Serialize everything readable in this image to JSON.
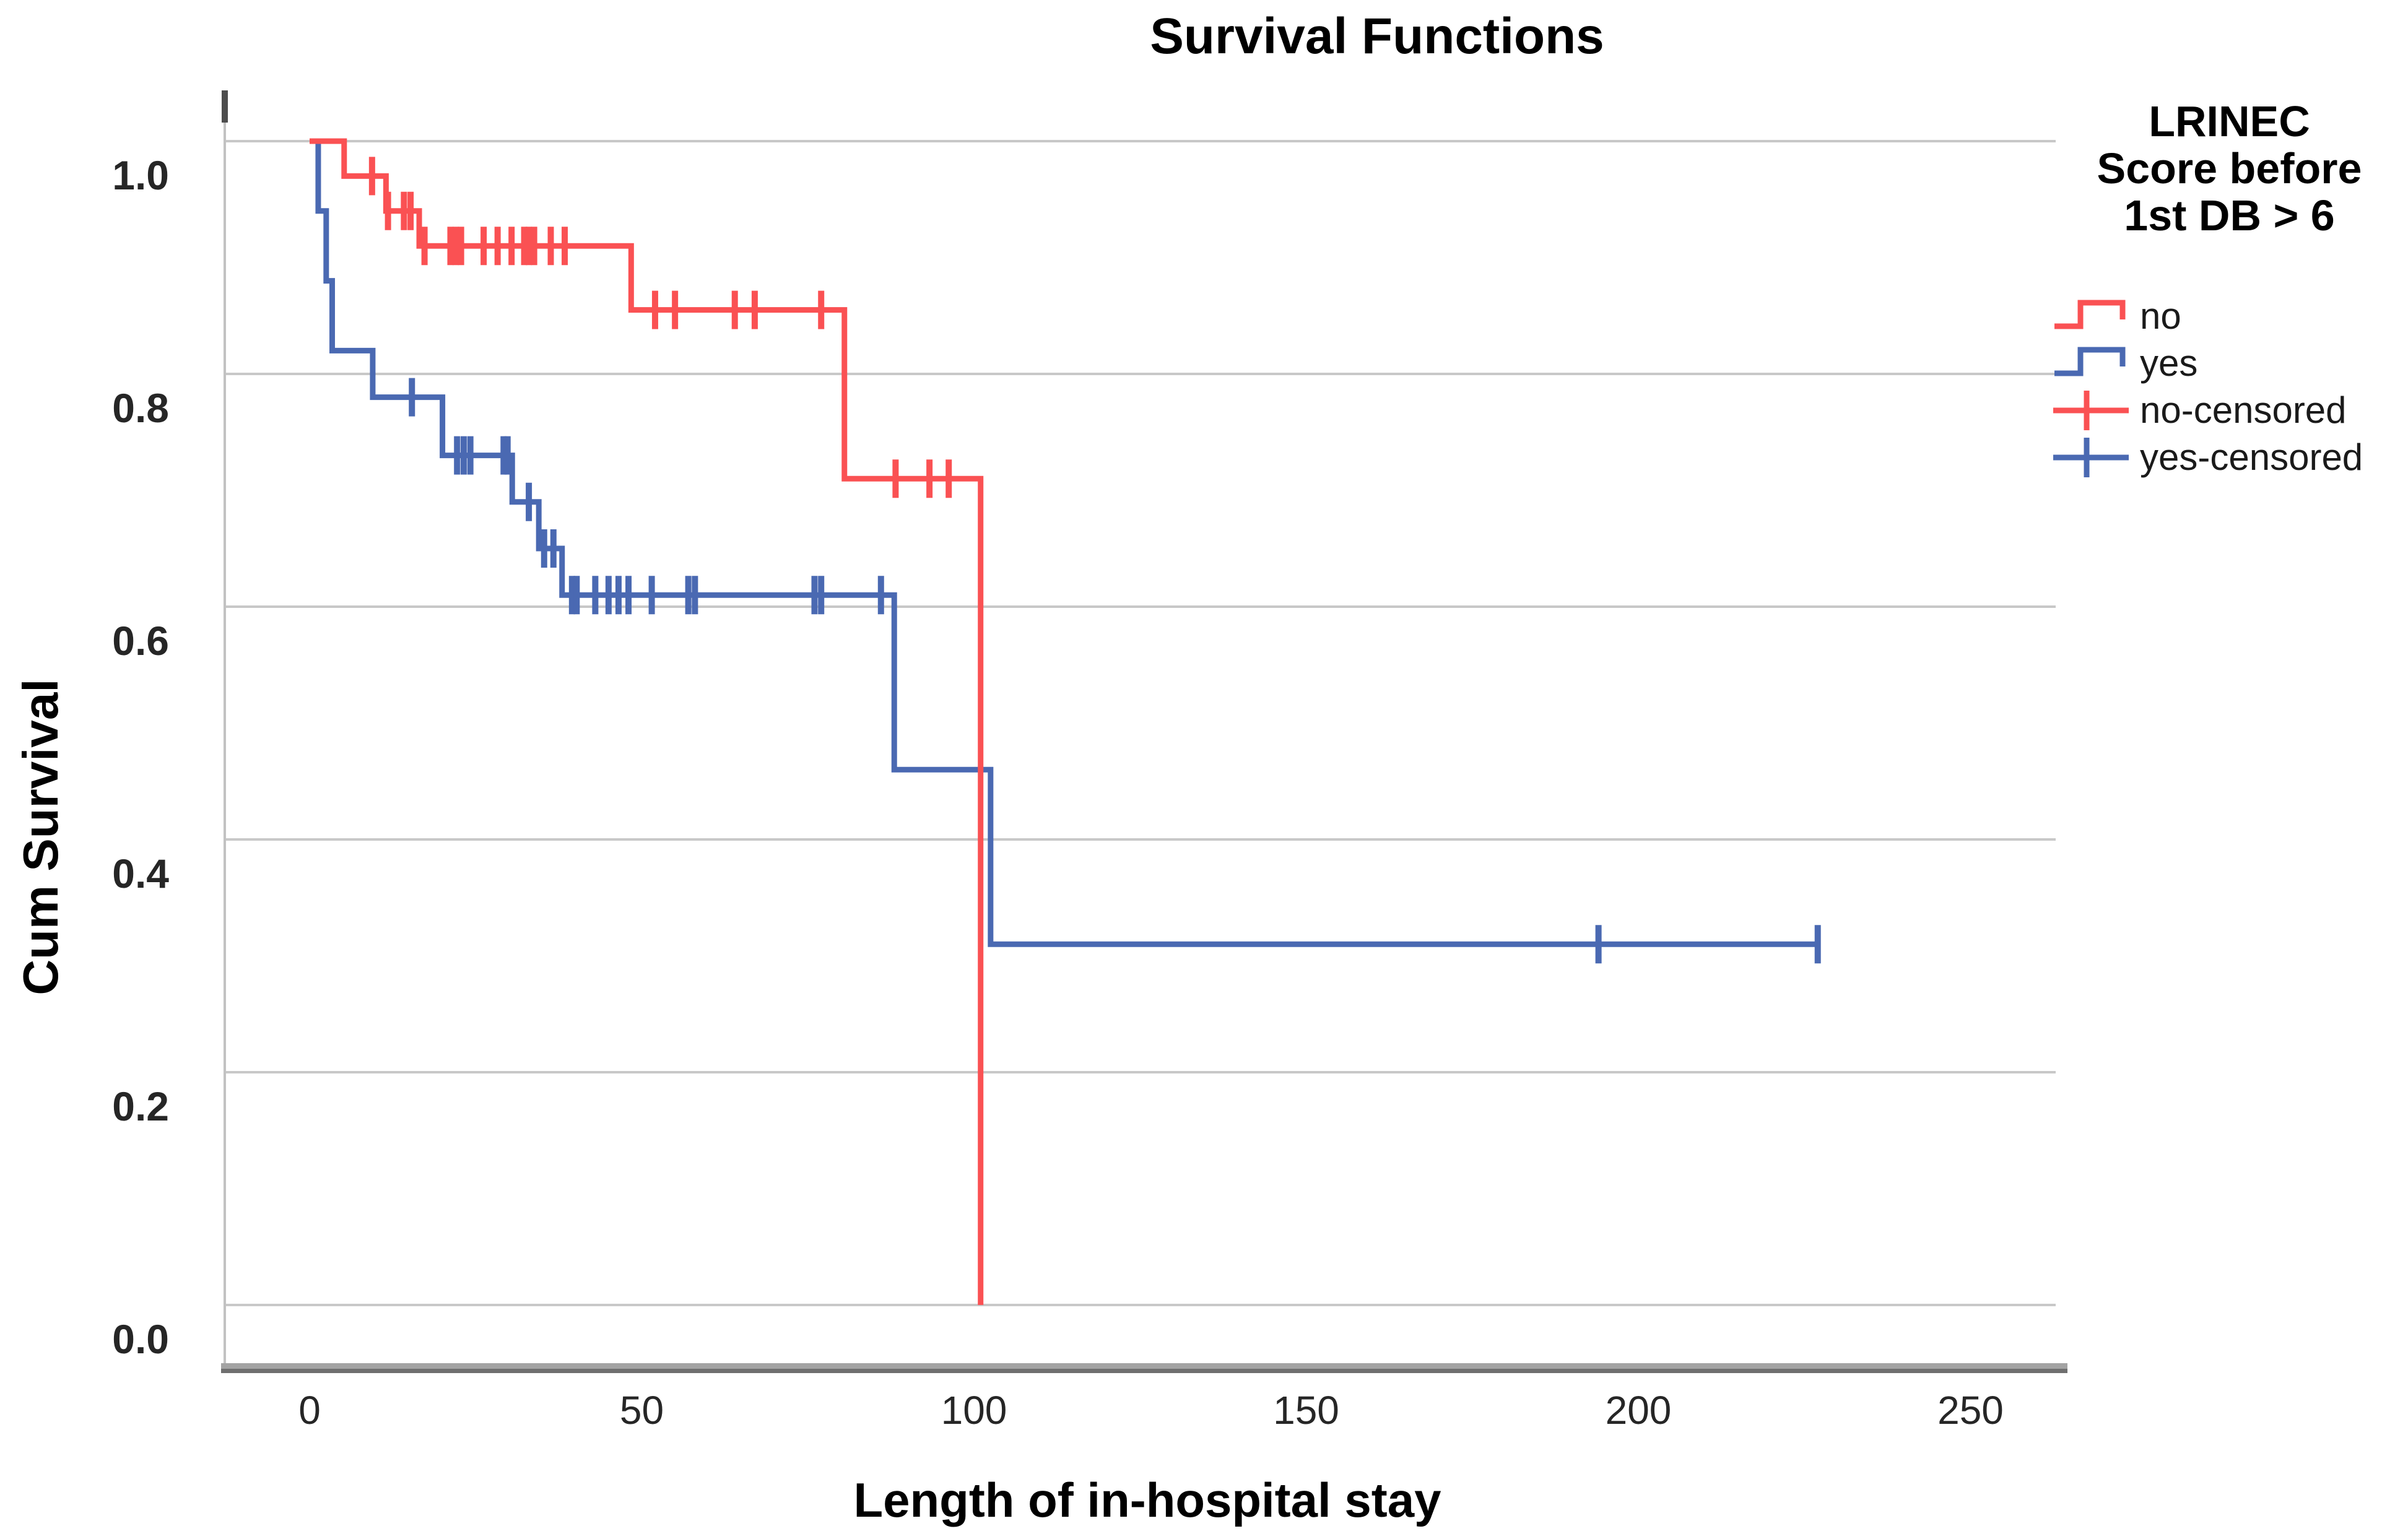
{
  "chart_data": {
    "type": "line",
    "subtype": "kaplan-meier-step-plot",
    "title": "Survival Functions",
    "xlabel": "Length of in-hospital stay",
    "ylabel": "Cum Survival",
    "xlim": [
      -13,
      262
    ],
    "ylim": [
      -0.05,
      1.06
    ],
    "xticks": [
      0,
      50,
      100,
      150,
      200,
      250
    ],
    "ytick_values": [
      1.0,
      0.8,
      0.6,
      0.4,
      0.2,
      0.0
    ],
    "ytick_labels": [
      "1.0",
      "0.8",
      "0.6",
      "0.4",
      "0.2",
      "0.0"
    ],
    "grid": "horizontal",
    "legend_position": "right",
    "series": [
      {
        "name": "no",
        "color": "#FA5153",
        "steps": [
          [
            0,
            1.0
          ],
          [
            5.2,
            0.97
          ],
          [
            11.5,
            0.94
          ],
          [
            16.5,
            0.91
          ],
          [
            48.4,
            0.855
          ],
          [
            80.5,
            0.71
          ],
          [
            101,
            0.0
          ]
        ],
        "end_x": 101,
        "censored": [
          [
            9.4,
            0.97
          ],
          [
            11.8,
            0.94
          ],
          [
            14.2,
            0.94
          ],
          [
            15.2,
            0.94
          ],
          [
            17.3,
            0.91
          ],
          [
            21.2,
            0.91
          ],
          [
            22.0,
            0.91
          ],
          [
            22.8,
            0.91
          ],
          [
            26.2,
            0.91
          ],
          [
            28.3,
            0.91
          ],
          [
            30.4,
            0.91
          ],
          [
            32.3,
            0.91
          ],
          [
            33.0,
            0.91
          ],
          [
            33.8,
            0.91
          ],
          [
            36.3,
            0.91
          ],
          [
            38.4,
            0.91
          ],
          [
            52,
            0.855
          ],
          [
            55,
            0.855
          ],
          [
            64,
            0.855
          ],
          [
            67,
            0.855
          ],
          [
            77,
            0.855
          ],
          [
            88.2,
            0.71
          ],
          [
            93.3,
            0.71
          ],
          [
            96.2,
            0.71
          ]
        ]
      },
      {
        "name": "yes",
        "color": "#4A69B2",
        "steps": [
          [
            0,
            1.0
          ],
          [
            1.3,
            0.94
          ],
          [
            2.5,
            0.88
          ],
          [
            3.4,
            0.82
          ],
          [
            9.5,
            0.78
          ],
          [
            20,
            0.73
          ],
          [
            30.5,
            0.69
          ],
          [
            34.5,
            0.65
          ],
          [
            38,
            0.61
          ],
          [
            88,
            0.46
          ],
          [
            102.5,
            0.31
          ]
        ],
        "end_x": 227,
        "censored": [
          [
            15.4,
            0.78
          ],
          [
            22.2,
            0.73
          ],
          [
            23.2,
            0.73
          ],
          [
            24.2,
            0.73
          ],
          [
            29.2,
            0.73
          ],
          [
            29.8,
            0.73
          ],
          [
            33,
            0.69
          ],
          [
            35.3,
            0.65
          ],
          [
            36.7,
            0.65
          ],
          [
            39.5,
            0.61
          ],
          [
            40.2,
            0.61
          ],
          [
            43,
            0.61
          ],
          [
            45,
            0.61
          ],
          [
            46.5,
            0.61
          ],
          [
            48,
            0.61
          ],
          [
            51.5,
            0.61
          ],
          [
            57,
            0.61
          ],
          [
            58,
            0.61
          ],
          [
            76,
            0.61
          ],
          [
            77,
            0.61
          ],
          [
            86,
            0.61
          ],
          [
            194,
            0.31
          ],
          [
            227,
            0.31
          ]
        ]
      }
    ]
  },
  "legend": {
    "title_lines": [
      "LRINEC",
      "Score before",
      "1st DB > 6"
    ],
    "items": [
      {
        "label": "no",
        "marker": "step",
        "color": "#FA5153"
      },
      {
        "label": "yes",
        "marker": "step",
        "color": "#4A69B2"
      },
      {
        "label": "no-censored",
        "marker": "plus",
        "color": "#FA5153"
      },
      {
        "label": "yes-censored",
        "marker": "plus",
        "color": "#4A69B2"
      }
    ]
  },
  "colors": {
    "no_curve": "#FA5153",
    "yes_curve": "#4A69B2",
    "gridline": "#C8C8C8",
    "y_axis_line": "#C2C2C2",
    "axis_cap": "#4D4D4D",
    "x_axis_bar_top": "#A3A3A3",
    "x_axis_bar_bottom": "#6F6F6F",
    "tick_text": "#262626",
    "background": "#FFFFFF"
  }
}
